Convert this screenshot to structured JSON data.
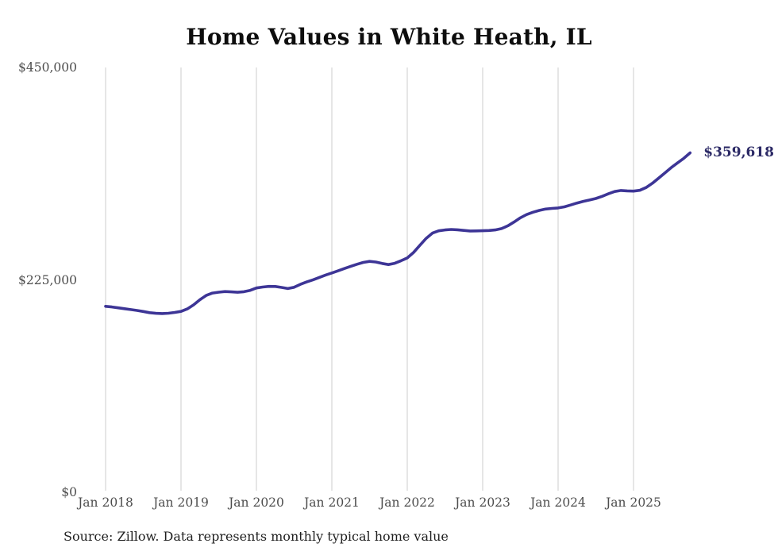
{
  "title": "Home Values in White Heath, IL",
  "source_note": "Source: Zillow. Data represents monthly typical home value",
  "end_label": "$359,618",
  "colors": {
    "line": "#3d3596",
    "end_label": "#2c2a66",
    "grid": "#cccccc",
    "axis_text": "#4d4d4d",
    "title_text": "#0d0d0d",
    "source_text": "#1f1f1f",
    "background": "#ffffff"
  },
  "chart_data": {
    "type": "line",
    "title": "Home Values in White Heath, IL",
    "xlabel": "",
    "ylabel": "",
    "ylim": [
      0,
      450000
    ],
    "grid": "vertical-only",
    "legend": "none",
    "y_ticks": [
      {
        "label": "$0",
        "value": 0
      },
      {
        "label": "$225,000",
        "value": 225000
      },
      {
        "label": "$450,000",
        "value": 450000
      }
    ],
    "x_ticks": [
      {
        "label": "Jan 2018",
        "month_index": 0
      },
      {
        "label": "Jan 2019",
        "month_index": 12
      },
      {
        "label": "Jan 2020",
        "month_index": 24
      },
      {
        "label": "Jan 2021",
        "month_index": 36
      },
      {
        "label": "Jan 2022",
        "month_index": 48
      },
      {
        "label": "Jan 2023",
        "month_index": 60
      },
      {
        "label": "Jan 2024",
        "month_index": 72
      },
      {
        "label": "Jan 2025",
        "month_index": 84
      }
    ],
    "series": [
      {
        "name": "Monthly typical home value",
        "frequency": "monthly",
        "start": "Jan 2018",
        "end": "Oct 2025",
        "final_value": 359618,
        "values": [
          197000,
          196300,
          195400,
          194500,
          193500,
          192600,
          191500,
          190300,
          189600,
          189300,
          189700,
          190500,
          191600,
          194200,
          198500,
          204000,
          208500,
          211000,
          212000,
          212600,
          212300,
          211900,
          212500,
          213900,
          216400,
          217400,
          218100,
          218000,
          217000,
          215800,
          217200,
          220300,
          222800,
          225100,
          227600,
          230100,
          232300,
          234600,
          237000,
          239400,
          241600,
          243500,
          244600,
          243900,
          242400,
          241200,
          242600,
          245300,
          248200,
          254000,
          261500,
          269000,
          274500,
          277000,
          277900,
          278400,
          278100,
          277400,
          276800,
          276900,
          277100,
          277300,
          277900,
          279300,
          282300,
          286300,
          290800,
          294200,
          296700,
          298600,
          300000,
          300700,
          301200,
          302400,
          304300,
          306400,
          308200,
          309600,
          311200,
          313500,
          316200,
          318600,
          319700,
          319300,
          319000,
          319900,
          322800,
          327400,
          332800,
          338400,
          343900,
          348900,
          353800,
          359618
        ]
      }
    ]
  }
}
